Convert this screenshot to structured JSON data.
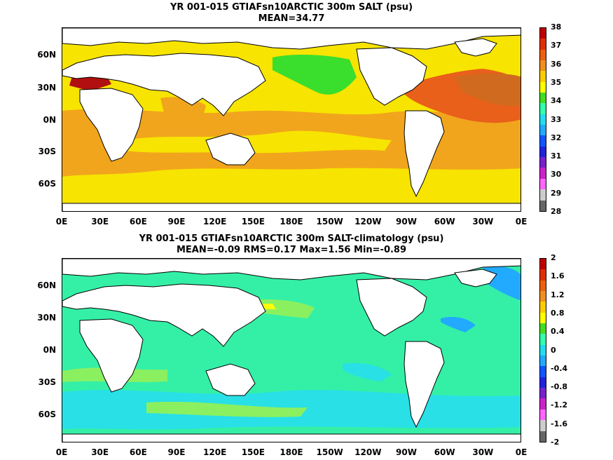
{
  "panels": [
    {
      "title": "YR 001-015 GTIAFsn10ARCTIC 300m SALT (psu)",
      "subtitle": "MEAN=34.77",
      "colorbar": {
        "labels": [
          "38",
          "37",
          "36",
          "35",
          "34",
          "33",
          "32",
          "31",
          "30",
          "29",
          "28"
        ],
        "colors": [
          "#c00000",
          "#e03000",
          "#ee6010",
          "#f09020",
          "#ffcc00",
          "#ffff00",
          "#44dd22",
          "#33ffaa",
          "#22ddee",
          "#22aaff",
          "#1155ff",
          "#2222dd",
          "#7722cc",
          "#cc22cc",
          "#ff66ff",
          "#cccccc",
          "#666666"
        ]
      },
      "fields": {
        "ocean": "#f7e400",
        "warm": "#f1a51c",
        "hot": "#e8601a",
        "fresh": "#3ade2c",
        "land": "#ffffff"
      }
    },
    {
      "title": "YR 001-015 GTIAFsn10ARCTIC 300m SALT-climatology (psu)",
      "subtitle": "MEAN=-0.09   RMS=0.17   Max=1.56   Min=-0.89",
      "colorbar": {
        "labels": [
          "2",
          "1.6",
          "1.2",
          "0.8",
          "0.4",
          "0",
          "-0.4",
          "-0.8",
          "-1.2",
          "-1.6",
          "-2"
        ],
        "colors": [
          "#c00000",
          "#e03000",
          "#ee6010",
          "#f09020",
          "#ffcc00",
          "#ffff00",
          "#44dd22",
          "#33ffaa",
          "#22ddee",
          "#22aaff",
          "#1155ff",
          "#2222dd",
          "#7722cc",
          "#cc22cc",
          "#ff66ff",
          "#cccccc",
          "#666666"
        ]
      },
      "fields": {
        "ocean": "#34f0a6",
        "pos": "#8bf060",
        "neg": "#28e0e6",
        "strong": "#22aaff",
        "land": "#ffffff"
      }
    }
  ],
  "axes": {
    "lat_labels": [
      "60N",
      "30N",
      "0N",
      "30S",
      "60S"
    ],
    "lon_labels": [
      "0E",
      "30E",
      "60E",
      "90E",
      "120E",
      "150E",
      "180E",
      "150W",
      "120W",
      "90W",
      "60W",
      "30W",
      "0E"
    ]
  }
}
